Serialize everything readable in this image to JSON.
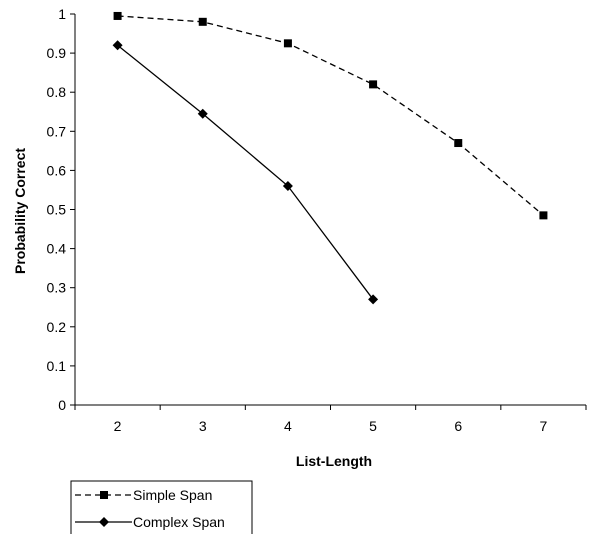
{
  "chart_data": {
    "type": "line",
    "title": "",
    "xlabel": "List-Length",
    "ylabel": "Probability Correct",
    "x": [
      2,
      3,
      4,
      5,
      6,
      7
    ],
    "x_tick_labels": [
      "2",
      "3",
      "4",
      "5",
      "6",
      "7"
    ],
    "ylim": [
      0,
      1
    ],
    "y_ticks": [
      0,
      0.1,
      0.2,
      0.3,
      0.4,
      0.5,
      0.6,
      0.7,
      0.8,
      0.9,
      1
    ],
    "y_tick_labels": [
      "0",
      "0.1",
      "0.2",
      "0.3",
      "0.4",
      "0.5",
      "0.6",
      "0.7",
      "0.8",
      "0.9",
      "1"
    ],
    "grid": false,
    "legend_position": "bottom-left",
    "series": [
      {
        "name": "Simple Span",
        "line_style": "dashed",
        "marker": "square",
        "color": "#000000",
        "points": [
          {
            "x": 2,
            "y": 0.995
          },
          {
            "x": 3,
            "y": 0.98
          },
          {
            "x": 4,
            "y": 0.925
          },
          {
            "x": 5,
            "y": 0.82
          },
          {
            "x": 6,
            "y": 0.67
          },
          {
            "x": 7,
            "y": 0.485
          }
        ]
      },
      {
        "name": "Complex Span",
        "line_style": "solid",
        "marker": "diamond",
        "color": "#000000",
        "points": [
          {
            "x": 2,
            "y": 0.92
          },
          {
            "x": 3,
            "y": 0.745
          },
          {
            "x": 4,
            "y": 0.56
          },
          {
            "x": 5,
            "y": 0.27
          }
        ]
      }
    ]
  }
}
